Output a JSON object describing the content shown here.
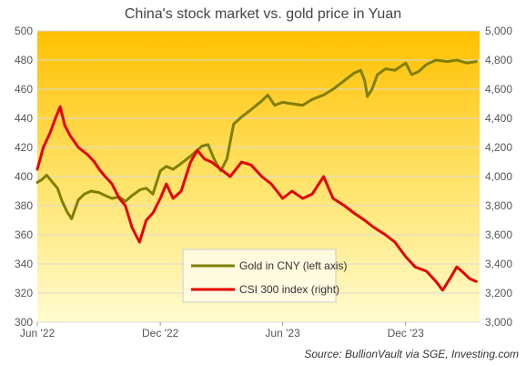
{
  "chart_data": {
    "type": "line",
    "title": "China's stock market vs. gold price in Yuan",
    "source": "Source: BullionVault via SGE, Investing.com",
    "x_ticks": [
      "Jun '22",
      "Dec '22",
      "Jun '23",
      "Dec '23"
    ],
    "x_tick_dates": [
      "2022-06-01",
      "2022-12-01",
      "2023-06-01",
      "2023-12-01"
    ],
    "x_range": [
      "2022-06-01",
      "2024-03-20"
    ],
    "y_left": {
      "min": 300,
      "max": 500,
      "ticks": [
        300,
        320,
        340,
        360,
        380,
        400,
        420,
        440,
        460,
        480,
        500
      ],
      "tick_labels": [
        "300",
        "320",
        "340",
        "360",
        "380",
        "400",
        "420",
        "440",
        "460",
        "480",
        "500"
      ]
    },
    "y_right": {
      "min": 3000,
      "max": 5000,
      "ticks": [
        3000,
        3200,
        3400,
        3600,
        3800,
        4000,
        4200,
        4400,
        4600,
        4800,
        5000
      ],
      "tick_labels": [
        "3,000",
        "3,200",
        "3,400",
        "3,600",
        "3,800",
        "4,000",
        "4,200",
        "4,400",
        "4,600",
        "4,800",
        "5,000"
      ]
    },
    "grid": "horizontal",
    "legend_position": "bottom-right",
    "series": [
      {
        "name": "Gold in CNY (left axis)",
        "axis": "left",
        "color": "#7f7f00",
        "points": [
          [
            "2022-06-01",
            396
          ],
          [
            "2022-06-08",
            398
          ],
          [
            "2022-06-15",
            401
          ],
          [
            "2022-06-22",
            397
          ],
          [
            "2022-07-01",
            392
          ],
          [
            "2022-07-08",
            383
          ],
          [
            "2022-07-15",
            376
          ],
          [
            "2022-07-22",
            371
          ],
          [
            "2022-08-01",
            384
          ],
          [
            "2022-08-10",
            388
          ],
          [
            "2022-08-20",
            390
          ],
          [
            "2022-09-01",
            389
          ],
          [
            "2022-09-10",
            387
          ],
          [
            "2022-09-20",
            385
          ],
          [
            "2022-10-01",
            386
          ],
          [
            "2022-10-10",
            383
          ],
          [
            "2022-10-20",
            387
          ],
          [
            "2022-11-01",
            391
          ],
          [
            "2022-11-10",
            392
          ],
          [
            "2022-11-20",
            388
          ],
          [
            "2022-12-01",
            404
          ],
          [
            "2022-12-10",
            407
          ],
          [
            "2022-12-20",
            405
          ],
          [
            "2023-01-01",
            409
          ],
          [
            "2023-01-15",
            414
          ],
          [
            "2023-02-01",
            421
          ],
          [
            "2023-02-10",
            422
          ],
          [
            "2023-02-20",
            411
          ],
          [
            "2023-03-01",
            404
          ],
          [
            "2023-03-10",
            412
          ],
          [
            "2023-03-20",
            436
          ],
          [
            "2023-04-01",
            441
          ],
          [
            "2023-04-15",
            446
          ],
          [
            "2023-05-01",
            452
          ],
          [
            "2023-05-10",
            456
          ],
          [
            "2023-05-20",
            449
          ],
          [
            "2023-06-01",
            451
          ],
          [
            "2023-06-15",
            450
          ],
          [
            "2023-07-01",
            449
          ],
          [
            "2023-07-15",
            453
          ],
          [
            "2023-08-01",
            456
          ],
          [
            "2023-08-15",
            460
          ],
          [
            "2023-09-01",
            466
          ],
          [
            "2023-09-15",
            471
          ],
          [
            "2023-09-25",
            473
          ],
          [
            "2023-10-01",
            466
          ],
          [
            "2023-10-05",
            455
          ],
          [
            "2023-10-12",
            460
          ],
          [
            "2023-10-20",
            470
          ],
          [
            "2023-11-01",
            474
          ],
          [
            "2023-11-15",
            473
          ],
          [
            "2023-12-01",
            478
          ],
          [
            "2023-12-10",
            470
          ],
          [
            "2023-12-20",
            472
          ],
          [
            "2024-01-01",
            477
          ],
          [
            "2024-01-15",
            480
          ],
          [
            "2024-02-01",
            479
          ],
          [
            "2024-02-15",
            480
          ],
          [
            "2024-03-01",
            478
          ],
          [
            "2024-03-15",
            479
          ]
        ]
      },
      {
        "name": "CSI 300 index (right)",
        "axis": "right",
        "color": "#e60000",
        "points": [
          [
            "2022-06-01",
            4050
          ],
          [
            "2022-06-10",
            4200
          ],
          [
            "2022-06-20",
            4300
          ],
          [
            "2022-06-28",
            4400
          ],
          [
            "2022-07-05",
            4480
          ],
          [
            "2022-07-12",
            4350
          ],
          [
            "2022-07-20",
            4280
          ],
          [
            "2022-08-01",
            4200
          ],
          [
            "2022-08-15",
            4150
          ],
          [
            "2022-08-25",
            4100
          ],
          [
            "2022-09-01",
            4050
          ],
          [
            "2022-09-10",
            4000
          ],
          [
            "2022-09-20",
            3950
          ],
          [
            "2022-10-01",
            3850
          ],
          [
            "2022-10-10",
            3800
          ],
          [
            "2022-10-20",
            3650
          ],
          [
            "2022-10-31",
            3550
          ],
          [
            "2022-11-10",
            3700
          ],
          [
            "2022-11-20",
            3750
          ],
          [
            "2022-12-01",
            3850
          ],
          [
            "2022-12-10",
            3950
          ],
          [
            "2022-12-20",
            3850
          ],
          [
            "2023-01-01",
            3900
          ],
          [
            "2023-01-15",
            4100
          ],
          [
            "2023-01-25",
            4180
          ],
          [
            "2023-02-05",
            4120
          ],
          [
            "2023-02-15",
            4100
          ],
          [
            "2023-03-01",
            4050
          ],
          [
            "2023-03-15",
            4000
          ],
          [
            "2023-04-01",
            4100
          ],
          [
            "2023-04-15",
            4080
          ],
          [
            "2023-05-01",
            4000
          ],
          [
            "2023-05-15",
            3950
          ],
          [
            "2023-06-01",
            3850
          ],
          [
            "2023-06-15",
            3900
          ],
          [
            "2023-07-01",
            3850
          ],
          [
            "2023-07-15",
            3880
          ],
          [
            "2023-08-01",
            4000
          ],
          [
            "2023-08-15",
            3850
          ],
          [
            "2023-09-01",
            3800
          ],
          [
            "2023-09-15",
            3750
          ],
          [
            "2023-10-01",
            3700
          ],
          [
            "2023-10-15",
            3650
          ],
          [
            "2023-11-01",
            3600
          ],
          [
            "2023-11-15",
            3550
          ],
          [
            "2023-12-01",
            3450
          ],
          [
            "2023-12-15",
            3380
          ],
          [
            "2024-01-01",
            3350
          ],
          [
            "2024-01-15",
            3280
          ],
          [
            "2024-01-25",
            3220
          ],
          [
            "2024-02-05",
            3300
          ],
          [
            "2024-02-15",
            3380
          ],
          [
            "2024-02-25",
            3340
          ],
          [
            "2024-03-05",
            3300
          ],
          [
            "2024-03-15",
            3280
          ]
        ]
      }
    ]
  }
}
